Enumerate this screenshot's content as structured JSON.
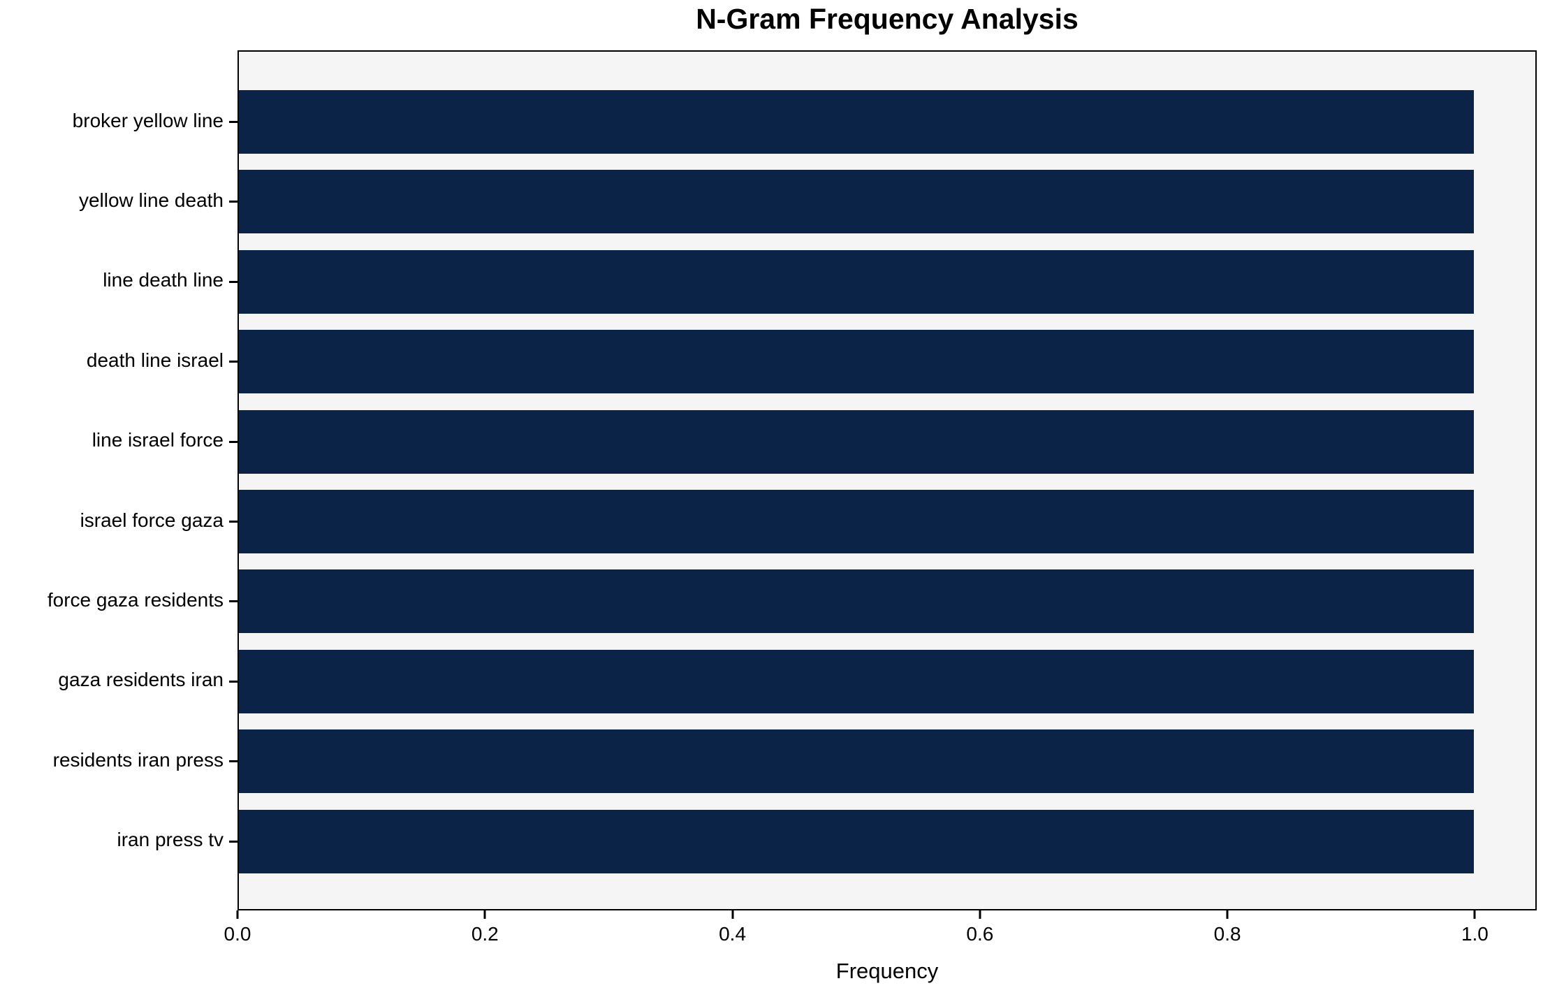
{
  "title": "N-Gram Frequency Analysis",
  "chart_data": {
    "type": "bar",
    "orientation": "horizontal",
    "title": "N-Gram Frequency Analysis",
    "xlabel": "Frequency",
    "ylabel": "",
    "categories": [
      "broker yellow line",
      "yellow line death",
      "line death line",
      "death line israel",
      "line israel force",
      "israel force gaza",
      "force gaza residents",
      "gaza residents iran",
      "residents iran press",
      "iran press tv"
    ],
    "values": [
      1.0,
      1.0,
      1.0,
      1.0,
      1.0,
      1.0,
      1.0,
      1.0,
      1.0,
      1.0
    ],
    "xtick_labels": [
      "0.0",
      "0.2",
      "0.4",
      "0.6",
      "0.8",
      "1.0"
    ],
    "xtick_values": [
      0.0,
      0.2,
      0.4,
      0.6,
      0.8,
      1.0
    ],
    "xlim": [
      0,
      1.05
    ],
    "grid": false,
    "legend": "none",
    "bar_color": "#0a2347",
    "plot_background": "#f5f5f5",
    "figure_background": "#ffffff",
    "spine_color": "#000000"
  }
}
